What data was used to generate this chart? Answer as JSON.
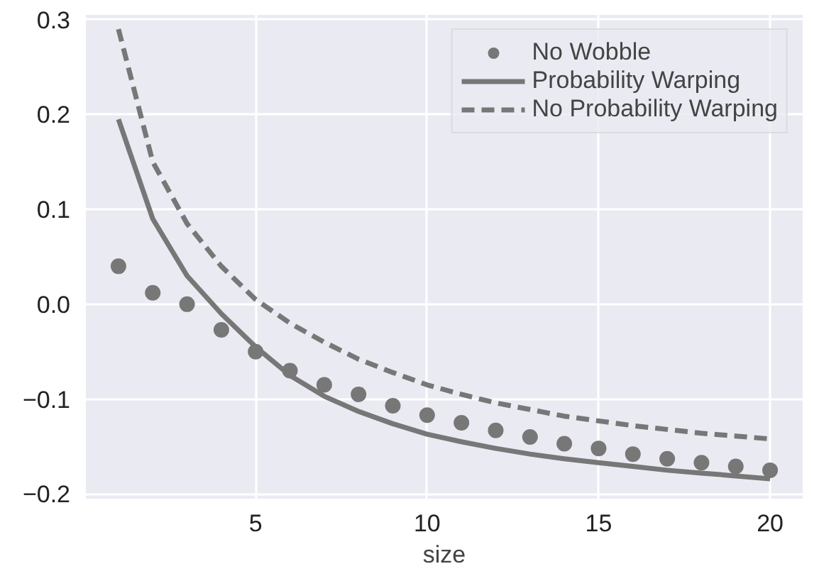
{
  "chart_data": {
    "type": "line",
    "xlabel": "size",
    "x": [
      1,
      2,
      3,
      4,
      5,
      6,
      7,
      8,
      9,
      10,
      11,
      12,
      13,
      14,
      15,
      16,
      17,
      18,
      19,
      20
    ],
    "series": [
      {
        "name": "No Wobble",
        "type": "scatter",
        "marker": "circle",
        "color": "#777777",
        "values": [
          0.04,
          0.012,
          0.0,
          -0.027,
          -0.05,
          -0.07,
          -0.085,
          -0.095,
          -0.107,
          -0.117,
          -0.125,
          -0.133,
          -0.14,
          -0.147,
          -0.152,
          -0.158,
          -0.163,
          -0.167,
          -0.171,
          -0.175
        ]
      },
      {
        "name": "Probability Warping",
        "line_style": "solid",
        "color": "#777777",
        "values": [
          0.195,
          0.09,
          0.03,
          -0.01,
          -0.045,
          -0.075,
          -0.097,
          -0.113,
          -0.126,
          -0.137,
          -0.145,
          -0.152,
          -0.158,
          -0.163,
          -0.167,
          -0.171,
          -0.175,
          -0.178,
          -0.181,
          -0.184
        ]
      },
      {
        "name": "No Probability Warping",
        "line_style": "dashed",
        "color": "#777777",
        "values": [
          0.29,
          0.15,
          0.085,
          0.04,
          0.005,
          -0.02,
          -0.04,
          -0.058,
          -0.072,
          -0.085,
          -0.095,
          -0.104,
          -0.111,
          -0.118,
          -0.123,
          -0.128,
          -0.132,
          -0.136,
          -0.139,
          -0.142
        ]
      }
    ],
    "xlim": [
      0.05,
      20.95
    ],
    "ylim": [
      -0.205,
      0.305
    ],
    "xticks": [
      5,
      10,
      15,
      20
    ],
    "yticks": [
      {
        "value": -0.2,
        "label": "−0.2"
      },
      {
        "value": -0.1,
        "label": "−0.1"
      },
      {
        "value": 0.0,
        "label": "0.0"
      },
      {
        "value": 0.1,
        "label": "0.1"
      },
      {
        "value": 0.2,
        "label": "0.2"
      },
      {
        "value": 0.3,
        "label": "0.3"
      }
    ],
    "grid": true,
    "legend": "top right"
  }
}
